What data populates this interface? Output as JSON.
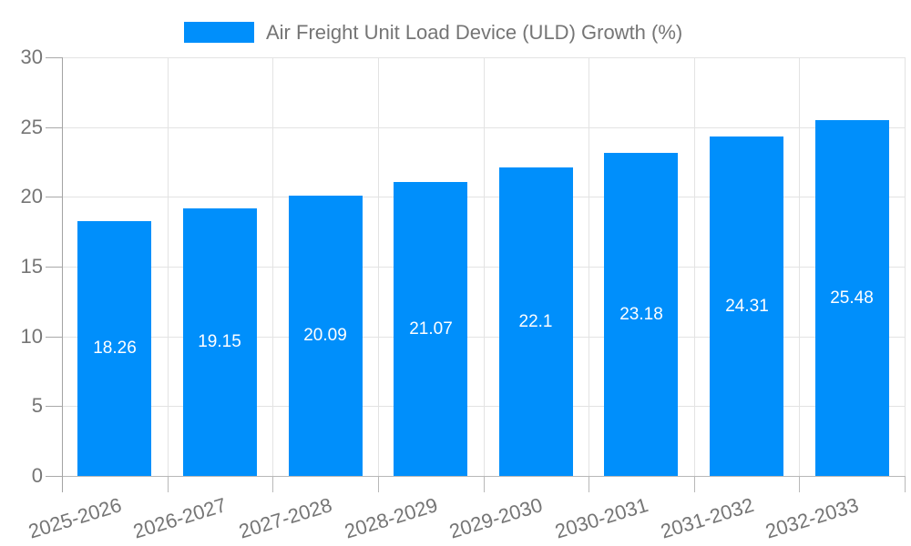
{
  "chart_data": {
    "type": "bar",
    "title": "Air Freight Unit Load Device (ULD) Growth (%)",
    "legend_label": "Air Freight Unit Load Device (ULD) Growth (%)",
    "legend_position": "top",
    "categories": [
      "2025-2026",
      "2026-2027",
      "2027-2028",
      "2028-2029",
      "2029-2030",
      "2030-2031",
      "2031-2032",
      "2032-2033"
    ],
    "values": [
      18.26,
      19.15,
      20.09,
      21.07,
      22.1,
      23.18,
      24.31,
      25.48
    ],
    "value_labels": [
      "18.26",
      "19.15",
      "20.09",
      "21.07",
      "22.1",
      "23.18",
      "24.31",
      "25.48"
    ],
    "xlabel": "",
    "ylabel": "",
    "ylim": [
      0,
      30
    ],
    "yticks": [
      0,
      5,
      10,
      15,
      20,
      25,
      30
    ],
    "grid": true,
    "legend_visible": true,
    "colors": {
      "bar": "#008FFB",
      "axis_label": "#757575",
      "legend_label": "#757575",
      "value_label": "#ffffff",
      "gridline": "#e3e3e3",
      "axis_line": "#a3a3a3",
      "tick": "#b8b8b8",
      "background": "#ffffff"
    }
  }
}
